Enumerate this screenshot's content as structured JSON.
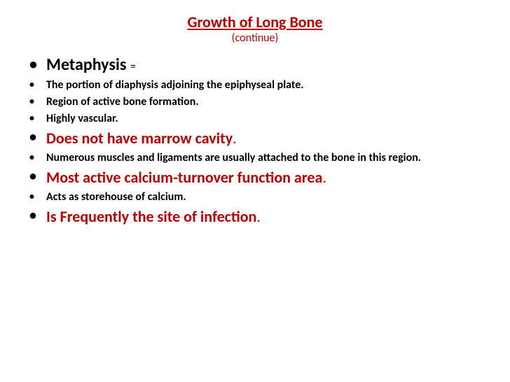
{
  "title": {
    "text": "Growth of Long Bone",
    "color": "#c00000",
    "fontSize": "22px"
  },
  "subtitle": {
    "text": "(continue)",
    "color": "#c00000",
    "fontSize": "16px"
  },
  "bullets": [
    {
      "prefix": "Metaphysis ",
      "suffix": "=",
      "color": "#000000",
      "fontSize": "24px",
      "prefixSize": "24px",
      "suffixSize": "16px",
      "bulletSize": "22px"
    },
    {
      "text": "The portion of diaphysis adjoining the epiphyseal plate.",
      "color": "#000000",
      "fontSize": "16px",
      "bulletSize": "14px"
    },
    {
      "text": "Region of active bone formation.",
      "color": "#000000",
      "fontSize": "16px",
      "bulletSize": "14px"
    },
    {
      "text": "Highly vascular.",
      "color": "#000000",
      "fontSize": "16px",
      "bulletSize": "14px"
    },
    {
      "prefix": "Does not have marrow cavity",
      "suffix": ".",
      "color": "#c00000",
      "fontSize": "22px",
      "bulletSize": "20px"
    },
    {
      "text": "Numerous muscles and ligaments are usually attached to the bone in this region.",
      "color": "#000000",
      "fontSize": "16px",
      "bulletSize": "14px"
    },
    {
      "prefix": "Most active calcium-turnover function area",
      "suffix": ".",
      "color": "#c00000",
      "fontSize": "22px",
      "bulletSize": "20px"
    },
    {
      "text": "Acts as storehouse of calcium.",
      "color": "#000000",
      "fontSize": "16px",
      "bulletSize": "14px"
    },
    {
      "prefix": "Is Frequently the site of infection",
      "suffix": ".",
      "color": "#c00000",
      "fontSize": "22px",
      "bulletSize": "20px"
    }
  ]
}
